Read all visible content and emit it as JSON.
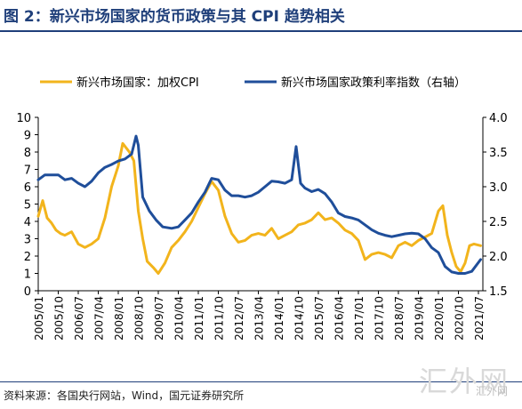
{
  "figure": {
    "title": "图 2：新兴市场国家的货币政策与其 CPI 趋势相关",
    "source": "资料来源：各国央行网站，Wind，国元证券研究所",
    "watermark": "汇外网",
    "watermark_sub": "汇外网"
  },
  "chart_data": {
    "type": "line",
    "xlabel": "",
    "ylabel": "",
    "y_left_lim": [
      0,
      10
    ],
    "y_right_lim": [
      1.5,
      4.0
    ],
    "grid": false,
    "legend_position": "top",
    "x_tick_labels": [
      "2005/01",
      "2005/10",
      "2006/07",
      "2007/04",
      "2008/01",
      "2008/10",
      "2009/07",
      "2010/04",
      "2011/01",
      "2011/10",
      "2012/07",
      "2013/04",
      "2014/01",
      "2014/10",
      "2015/07",
      "2016/04",
      "2017/01",
      "2017/10",
      "2018/07",
      "2019/04",
      "2020/01",
      "2020/10",
      "2021/07"
    ],
    "y_left_ticks": [
      "0",
      "1",
      "2",
      "3",
      "4",
      "5",
      "6",
      "7",
      "8",
      "9",
      "10"
    ],
    "y_right_ticks": [
      "1.5",
      "2.0",
      "2.5",
      "3.0",
      "3.5",
      "4.0"
    ],
    "series": [
      {
        "name": "新兴市场国家：加权CPI",
        "axis": "left",
        "color": "#f2b41c",
        "points": [
          [
            "2005-01",
            4.3
          ],
          [
            "2005-03",
            5.2
          ],
          [
            "2005-05",
            4.2
          ],
          [
            "2005-07",
            3.9
          ],
          [
            "2005-09",
            3.5
          ],
          [
            "2005-11",
            3.3
          ],
          [
            "2006-01",
            3.2
          ],
          [
            "2006-04",
            3.4
          ],
          [
            "2006-07",
            2.7
          ],
          [
            "2006-10",
            2.5
          ],
          [
            "2007-01",
            2.7
          ],
          [
            "2007-04",
            3.0
          ],
          [
            "2007-07",
            4.2
          ],
          [
            "2007-10",
            6.0
          ],
          [
            "2008-01",
            7.2
          ],
          [
            "2008-03",
            8.5
          ],
          [
            "2008-06",
            8.0
          ],
          [
            "2008-08",
            7.5
          ],
          [
            "2008-10",
            4.6
          ],
          [
            "2008-12",
            3.0
          ],
          [
            "2009-02",
            1.7
          ],
          [
            "2009-05",
            1.3
          ],
          [
            "2009-07",
            1.0
          ],
          [
            "2009-10",
            1.6
          ],
          [
            "2010-01",
            2.5
          ],
          [
            "2010-04",
            2.9
          ],
          [
            "2010-07",
            3.4
          ],
          [
            "2010-10",
            4.0
          ],
          [
            "2011-01",
            4.8
          ],
          [
            "2011-04",
            5.6
          ],
          [
            "2011-07",
            6.3
          ],
          [
            "2011-10",
            5.8
          ],
          [
            "2012-01",
            4.3
          ],
          [
            "2012-04",
            3.3
          ],
          [
            "2012-07",
            2.8
          ],
          [
            "2012-10",
            2.9
          ],
          [
            "2013-01",
            3.2
          ],
          [
            "2013-04",
            3.3
          ],
          [
            "2013-07",
            3.2
          ],
          [
            "2013-10",
            3.6
          ],
          [
            "2014-01",
            3.0
          ],
          [
            "2014-04",
            3.2
          ],
          [
            "2014-07",
            3.4
          ],
          [
            "2014-10",
            3.8
          ],
          [
            "2015-01",
            3.9
          ],
          [
            "2015-04",
            4.1
          ],
          [
            "2015-07",
            4.5
          ],
          [
            "2015-10",
            4.1
          ],
          [
            "2016-01",
            4.2
          ],
          [
            "2016-04",
            3.9
          ],
          [
            "2016-07",
            3.5
          ],
          [
            "2016-10",
            3.3
          ],
          [
            "2017-01",
            2.9
          ],
          [
            "2017-04",
            1.8
          ],
          [
            "2017-07",
            2.1
          ],
          [
            "2017-10",
            2.2
          ],
          [
            "2018-01",
            2.1
          ],
          [
            "2018-04",
            1.9
          ],
          [
            "2018-07",
            2.6
          ],
          [
            "2018-10",
            2.8
          ],
          [
            "2019-01",
            2.6
          ],
          [
            "2019-04",
            2.9
          ],
          [
            "2019-07",
            3.1
          ],
          [
            "2019-10",
            3.3
          ],
          [
            "2020-01",
            4.6
          ],
          [
            "2020-03",
            4.9
          ],
          [
            "2020-05",
            3.2
          ],
          [
            "2020-07",
            2.2
          ],
          [
            "2020-09",
            1.4
          ],
          [
            "2020-11",
            1.1
          ],
          [
            "2021-01",
            1.6
          ],
          [
            "2021-03",
            2.6
          ],
          [
            "2021-05",
            2.7
          ],
          [
            "2021-08",
            2.6
          ]
        ]
      },
      {
        "name": "新兴市场国家政策利率指数（右轴）",
        "axis": "right",
        "color": "#1f4e9a",
        "points": [
          [
            "2005-01",
            3.1
          ],
          [
            "2005-04",
            3.17
          ],
          [
            "2005-07",
            3.17
          ],
          [
            "2005-10",
            3.17
          ],
          [
            "2006-01",
            3.1
          ],
          [
            "2006-04",
            3.12
          ],
          [
            "2006-07",
            3.05
          ],
          [
            "2006-10",
            3.0
          ],
          [
            "2007-01",
            3.08
          ],
          [
            "2007-04",
            3.2
          ],
          [
            "2007-07",
            3.28
          ],
          [
            "2007-10",
            3.32
          ],
          [
            "2008-01",
            3.37
          ],
          [
            "2008-04",
            3.4
          ],
          [
            "2008-07",
            3.47
          ],
          [
            "2008-09",
            3.73
          ],
          [
            "2008-10",
            3.6
          ],
          [
            "2008-12",
            2.85
          ],
          [
            "2009-03",
            2.65
          ],
          [
            "2009-06",
            2.52
          ],
          [
            "2009-09",
            2.42
          ],
          [
            "2010-01",
            2.4
          ],
          [
            "2010-04",
            2.42
          ],
          [
            "2010-07",
            2.52
          ],
          [
            "2010-10",
            2.62
          ],
          [
            "2011-01",
            2.78
          ],
          [
            "2011-04",
            2.92
          ],
          [
            "2011-07",
            3.12
          ],
          [
            "2011-10",
            3.1
          ],
          [
            "2012-01",
            2.95
          ],
          [
            "2012-04",
            2.87
          ],
          [
            "2012-07",
            2.87
          ],
          [
            "2012-10",
            2.85
          ],
          [
            "2013-01",
            2.87
          ],
          [
            "2013-04",
            2.92
          ],
          [
            "2013-07",
            3.0
          ],
          [
            "2013-10",
            3.08
          ],
          [
            "2014-01",
            3.07
          ],
          [
            "2014-04",
            3.05
          ],
          [
            "2014-07",
            3.1
          ],
          [
            "2014-09",
            3.58
          ],
          [
            "2014-11",
            3.05
          ],
          [
            "2015-01",
            2.98
          ],
          [
            "2015-04",
            2.93
          ],
          [
            "2015-07",
            2.96
          ],
          [
            "2015-10",
            2.9
          ],
          [
            "2016-01",
            2.78
          ],
          [
            "2016-04",
            2.62
          ],
          [
            "2016-07",
            2.57
          ],
          [
            "2016-10",
            2.55
          ],
          [
            "2017-01",
            2.52
          ],
          [
            "2017-04",
            2.45
          ],
          [
            "2017-07",
            2.38
          ],
          [
            "2017-10",
            2.33
          ],
          [
            "2018-01",
            2.3
          ],
          [
            "2018-04",
            2.28
          ],
          [
            "2018-07",
            2.3
          ],
          [
            "2018-10",
            2.32
          ],
          [
            "2019-01",
            2.33
          ],
          [
            "2019-04",
            2.32
          ],
          [
            "2019-07",
            2.25
          ],
          [
            "2019-10",
            2.12
          ],
          [
            "2020-01",
            2.05
          ],
          [
            "2020-04",
            1.85
          ],
          [
            "2020-07",
            1.77
          ],
          [
            "2020-10",
            1.75
          ],
          [
            "2021-01",
            1.75
          ],
          [
            "2021-04",
            1.78
          ],
          [
            "2021-08",
            1.95
          ]
        ]
      }
    ]
  }
}
